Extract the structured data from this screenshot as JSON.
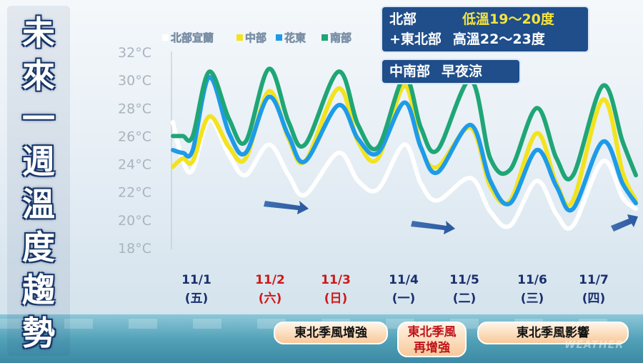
{
  "title_chars": [
    "未",
    "來",
    "一",
    "週",
    "溫",
    "度",
    "趨",
    "勢"
  ],
  "chart_data": {
    "type": "line",
    "ylim": [
      18,
      32
    ],
    "yticks": [
      "32°C",
      "30°C",
      "28°C",
      "26°C",
      "24°C",
      "22°C",
      "20°C",
      "18°C"
    ],
    "categories": [
      "11/1",
      "11/2",
      "11/3",
      "11/4",
      "11/5",
      "11/6",
      "11/7"
    ],
    "weekdays": [
      "(五)",
      "(六)",
      "(日)",
      "(一)",
      "(二)",
      "(三)",
      "(四)"
    ],
    "legend_position": "top",
    "series": [
      {
        "name": "北部宜蘭",
        "color": "#ffffff",
        "points": [
          [
            0,
            27.0
          ],
          [
            0.15,
            24.2
          ],
          [
            0.3,
            23.6
          ],
          [
            0.55,
            27.2
          ],
          [
            0.85,
            24.6
          ],
          [
            1.1,
            23.2
          ],
          [
            1.45,
            25.4
          ],
          [
            1.75,
            23.2
          ],
          [
            2.0,
            21.8
          ],
          [
            2.5,
            24.8
          ],
          [
            2.8,
            22.8
          ],
          [
            3.1,
            22.2
          ],
          [
            3.5,
            25.4
          ],
          [
            3.75,
            22.6
          ],
          [
            4.0,
            21.4
          ],
          [
            4.5,
            23.0
          ],
          [
            4.8,
            20.6
          ],
          [
            5.1,
            19.6
          ],
          [
            5.5,
            22.8
          ],
          [
            5.8,
            20.4
          ],
          [
            6.05,
            19.6
          ],
          [
            6.5,
            24.2
          ],
          [
            6.8,
            21.6
          ],
          [
            7.0,
            20.8
          ]
        ]
      },
      {
        "name": "中部",
        "color": "#f2e31e",
        "points": [
          [
            0,
            23.8
          ],
          [
            0.15,
            24.4
          ],
          [
            0.3,
            24.2
          ],
          [
            0.55,
            27.4
          ],
          [
            0.85,
            25.2
          ],
          [
            1.1,
            24.4
          ],
          [
            1.45,
            29.2
          ],
          [
            1.75,
            25.8
          ],
          [
            2.0,
            24.2
          ],
          [
            2.5,
            29.4
          ],
          [
            2.8,
            25.6
          ],
          [
            3.1,
            24.4
          ],
          [
            3.5,
            29.6
          ],
          [
            3.75,
            25.2
          ],
          [
            4.0,
            23.8
          ],
          [
            4.5,
            26.6
          ],
          [
            4.8,
            22.4
          ],
          [
            5.1,
            21.4
          ],
          [
            5.5,
            26.2
          ],
          [
            5.8,
            22.6
          ],
          [
            6.05,
            21.4
          ],
          [
            6.5,
            28.6
          ],
          [
            6.8,
            23.4
          ],
          [
            7.0,
            21.4
          ]
        ]
      },
      {
        "name": "花東",
        "color": "#1e9be8",
        "points": [
          [
            0,
            25.0
          ],
          [
            0.15,
            24.8
          ],
          [
            0.3,
            25.0
          ],
          [
            0.55,
            30.2
          ],
          [
            0.85,
            26.2
          ],
          [
            1.1,
            24.8
          ],
          [
            1.45,
            28.8
          ],
          [
            1.75,
            26.0
          ],
          [
            2.0,
            24.2
          ],
          [
            2.5,
            28.2
          ],
          [
            2.8,
            25.8
          ],
          [
            3.1,
            24.8
          ],
          [
            3.5,
            28.4
          ],
          [
            3.75,
            25.2
          ],
          [
            4.0,
            23.4
          ],
          [
            4.5,
            26.8
          ],
          [
            4.8,
            22.8
          ],
          [
            5.1,
            21.2
          ],
          [
            5.5,
            25.0
          ],
          [
            5.8,
            22.4
          ],
          [
            6.05,
            20.8
          ],
          [
            6.5,
            25.6
          ],
          [
            6.8,
            22.6
          ],
          [
            7.0,
            21.2
          ]
        ]
      },
      {
        "name": "南部",
        "color": "#1fa676",
        "points": [
          [
            0,
            26.0
          ],
          [
            0.15,
            26.0
          ],
          [
            0.3,
            26.0
          ],
          [
            0.55,
            30.6
          ],
          [
            0.85,
            27.2
          ],
          [
            1.1,
            25.6
          ],
          [
            1.45,
            30.8
          ],
          [
            1.75,
            27.0
          ],
          [
            2.0,
            25.4
          ],
          [
            2.5,
            30.6
          ],
          [
            2.8,
            26.8
          ],
          [
            3.1,
            25.2
          ],
          [
            3.5,
            30.2
          ],
          [
            3.75,
            26.6
          ],
          [
            4.0,
            25.0
          ],
          [
            4.5,
            30.0
          ],
          [
            4.8,
            24.4
          ],
          [
            5.1,
            23.6
          ],
          [
            5.5,
            28.0
          ],
          [
            5.8,
            24.4
          ],
          [
            6.05,
            23.2
          ],
          [
            6.5,
            29.6
          ],
          [
            6.8,
            25.6
          ],
          [
            7.0,
            23.2
          ]
        ]
      }
    ]
  },
  "info": {
    "north_region": "北部",
    "north_low": "低溫19～20度",
    "northeast_region": "+東北部",
    "north_high": "高溫22～23度",
    "south_region": "中南部",
    "south_note": "早夜涼"
  },
  "date_colors": [
    "#1b2f6e",
    "#d01818",
    "#d01818",
    "#1b2f6e",
    "#1b2f6e",
    "#1b2f6e",
    "#1b2f6e"
  ],
  "monsoon": {
    "p1": "東北季風增強",
    "p2_line1": "東北季風",
    "p2_line2": "再增強",
    "p3": "東北季風影響"
  },
  "watermark": "WEATHER"
}
